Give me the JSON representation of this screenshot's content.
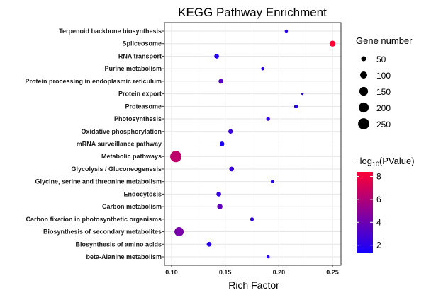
{
  "chart_data": {
    "type": "scatter",
    "title": "KEGG Pathway Enrichment",
    "xlabel": "Rich Factor",
    "ylabel": "",
    "xlim": [
      0.095,
      0.257
    ],
    "xticks": [
      "0.10",
      "0.15",
      "0.20",
      "0.25"
    ],
    "xtick_values": [
      0.1,
      0.15,
      0.2,
      0.25
    ],
    "grid": true,
    "categories": [
      "Terpenoid backbone biosynthesis",
      "Spliceosome",
      "RNA transport",
      "Purine metabolism",
      "Protein processing in endoplasmic reticulum",
      "Protein export",
      "Proteasome",
      "Photosynthesis",
      "Oxidative phosphorylation",
      "mRNA surveillance pathway",
      "Metabolic pathways",
      "Glycolysis / Gluconeogenesis",
      "Glycine, serine and threonine metabolism",
      "Endocytosis",
      "Carbon metabolism",
      "Carbon fixation in photosynthetic organisms",
      "Biosynthesis of secondary metabolites",
      "Biosynthesis of amino acids",
      "beta-Alanine metabolism"
    ],
    "rich_factor": [
      0.207,
      0.25,
      0.142,
      0.185,
      0.146,
      0.222,
      0.216,
      0.19,
      0.155,
      0.147,
      0.104,
      0.156,
      0.194,
      0.144,
      0.145,
      0.175,
      0.107,
      0.135,
      0.19
    ],
    "gene_number": [
      21,
      70,
      45,
      21,
      45,
      11,
      28,
      28,
      40,
      45,
      256,
      45,
      21,
      45,
      58,
      28,
      170,
      45,
      21
    ],
    "neg_log10_pvalue": [
      1.8,
      8.3,
      1.7,
      2.0,
      3.3,
      1.8,
      1.8,
      2.2,
      2.5,
      1.5,
      6.5,
      2.4,
      2.0,
      2.3,
      3.7,
      2.2,
      4.3,
      2.0,
      2.0
    ],
    "size_legend": {
      "title": "Gene number",
      "values": [
        50,
        100,
        150,
        200,
        250
      ],
      "labels": [
        "50",
        "100",
        "150",
        "200",
        "250"
      ]
    },
    "color_legend": {
      "title_prefix": "−log",
      "title_sub": "10",
      "title_suffix": "(PValue)",
      "range": [
        1.3,
        8.4
      ],
      "ticks": [
        2,
        4,
        6,
        8
      ],
      "tick_labels": [
        "2",
        "4",
        "6",
        "8"
      ],
      "low_color": "#1400FF",
      "high_color": "#FF0033"
    },
    "legend_placement": "right"
  }
}
